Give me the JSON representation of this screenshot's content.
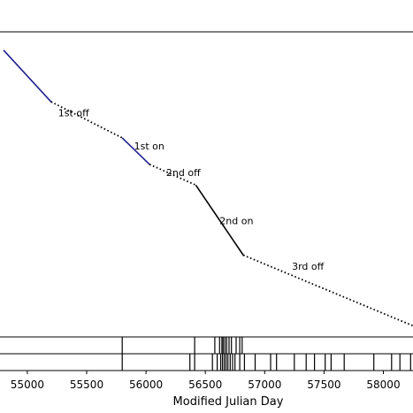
{
  "chart_data": {
    "type": "line",
    "title": "",
    "xlabel": "Modified Julian Day",
    "ylabel": "",
    "xlim": [
      54770,
      58250
    ],
    "ylim": [
      0,
      1
    ],
    "grid": false,
    "legend": "none",
    "x_ticks": [
      55000,
      55500,
      56000,
      56500,
      57000,
      57500,
      58000
    ],
    "x_tick_labels": [
      "55000",
      "55500",
      "56000",
      "56500",
      "57000",
      "57500",
      "58000"
    ],
    "segments": [
      {
        "style": "solid",
        "color": "#1f1f8f",
        "points": [
          [
            54800,
            0.951
          ],
          [
            55200,
            0.779
          ]
        ]
      },
      {
        "style": "dotted",
        "color": "#000000",
        "points": [
          [
            55200,
            0.779
          ],
          [
            55800,
            0.659
          ]
        ]
      },
      {
        "style": "solid",
        "color": "#1f1f8f",
        "points": [
          [
            55800,
            0.659
          ],
          [
            56030,
            0.571
          ]
        ]
      },
      {
        "style": "dotted",
        "color": "#000000",
        "points": [
          [
            56030,
            0.571
          ],
          [
            56420,
            0.502
          ]
        ]
      },
      {
        "style": "solid",
        "color": "#000000",
        "points": [
          [
            56420,
            0.502
          ],
          [
            56820,
            0.269
          ]
        ]
      },
      {
        "style": "dotted",
        "color": "#000000",
        "points": [
          [
            56820,
            0.269
          ],
          [
            58250,
            0.034
          ]
        ]
      }
    ],
    "annotations": [
      {
        "text": "1st off",
        "x": 55260,
        "y": 0.731
      },
      {
        "text": "1st on",
        "x": 55900,
        "y": 0.62
      },
      {
        "text": "2nd off",
        "x": 56170,
        "y": 0.533
      },
      {
        "text": "2nd on",
        "x": 56620,
        "y": 0.372
      },
      {
        "text": "3rd off",
        "x": 57230,
        "y": 0.221
      }
    ],
    "event_rows": [
      {
        "name": "top",
        "x": [
          55800,
          56410,
          56580,
          56620,
          56640,
          56650,
          56665,
          56680,
          56700,
          56720,
          56760,
          56790,
          56810
        ]
      },
      {
        "name": "bottom",
        "x": [
          55800,
          56370,
          56410,
          56560,
          56600,
          56630,
          56645,
          56660,
          56675,
          56690,
          56710,
          56730,
          56750,
          56790,
          56830,
          56920,
          57050,
          57100,
          57250,
          57350,
          57420,
          57510,
          57560,
          57670,
          57920,
          58070,
          58140,
          58230
        ]
      }
    ]
  }
}
